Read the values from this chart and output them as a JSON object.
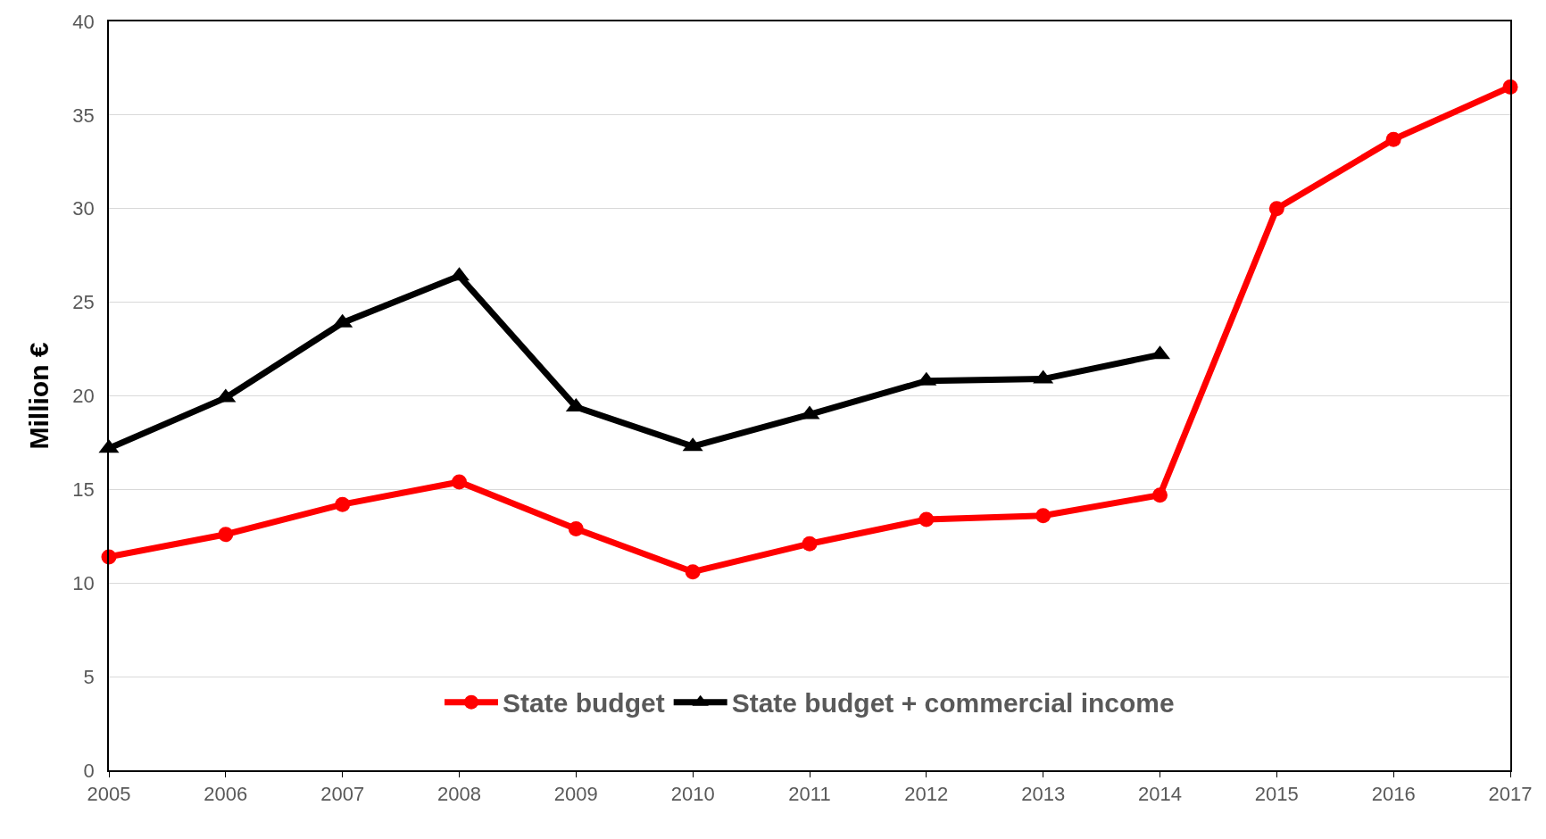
{
  "chart_data": {
    "type": "line",
    "ylabel": "Million €",
    "x": [
      2005,
      2006,
      2007,
      2008,
      2009,
      2010,
      2011,
      2012,
      2013,
      2014,
      2015,
      2016,
      2017
    ],
    "series": [
      {
        "name": "State budget",
        "color": "#ff0000",
        "marker": "circle",
        "values": [
          11.4,
          12.6,
          14.2,
          15.4,
          12.9,
          10.6,
          12.1,
          13.4,
          13.6,
          14.7,
          30.0,
          33.7,
          36.5
        ]
      },
      {
        "name": "State budget + commercial income",
        "color": "#000000",
        "marker": "triangle",
        "values": [
          17.2,
          19.9,
          23.9,
          26.4,
          19.4,
          17.3,
          19.0,
          20.8,
          20.9,
          22.2,
          null,
          null,
          null
        ]
      }
    ],
    "xlim": [
      2005,
      2017
    ],
    "xticks": [
      2005,
      2006,
      2007,
      2008,
      2009,
      2010,
      2011,
      2012,
      2013,
      2014,
      2015,
      2016,
      2017
    ],
    "ylim": [
      0,
      40
    ],
    "yticks": [
      0,
      5,
      10,
      15,
      20,
      25,
      30,
      35,
      40
    ],
    "grid": "y",
    "legend": "bottom",
    "line_style": "solid"
  }
}
